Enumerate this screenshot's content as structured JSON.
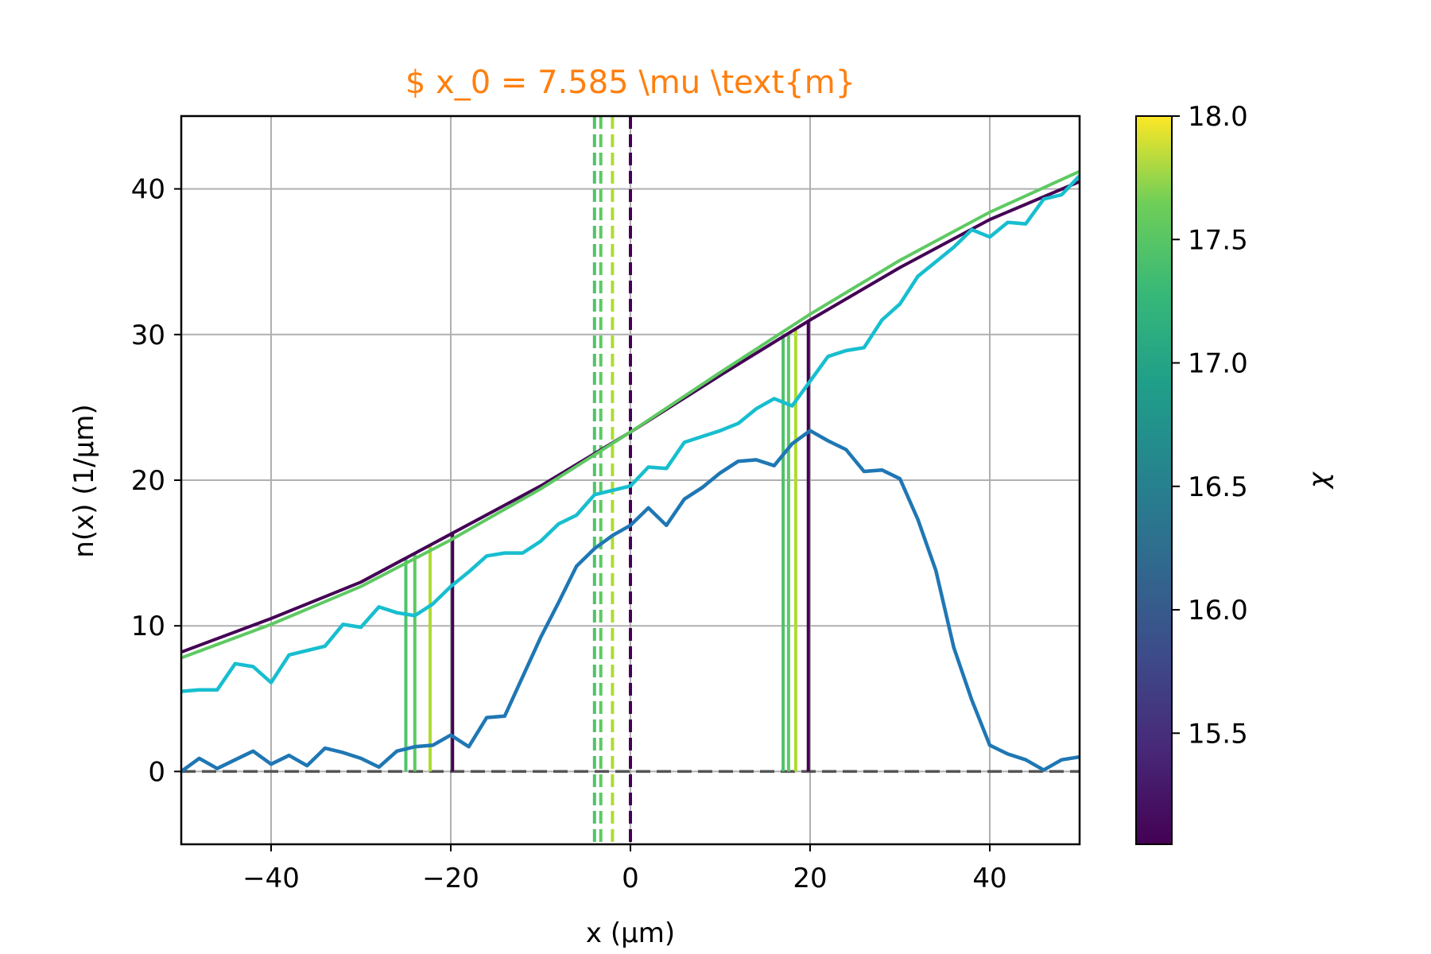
{
  "chart_data": {
    "type": "line",
    "title": "$ x_0 = 7.585 \\mu \\text{m}",
    "title_color": "#ff7f0e",
    "xlabel": "x   (μm)",
    "ylabel": "n(x)   (1/μm)",
    "xlim": [
      -50,
      50
    ],
    "ylim": [
      -5,
      45
    ],
    "x_ticks": [
      -40,
      -20,
      0,
      20,
      40
    ],
    "x_tick_labels": [
      "−40",
      "−20",
      "0",
      "20",
      "40"
    ],
    "y_ticks": [
      0,
      10,
      20,
      30,
      40
    ],
    "y_tick_labels": [
      "0",
      "10",
      "20",
      "30",
      "40"
    ],
    "grid": true,
    "colorbar": {
      "label": "χ",
      "min": 15.05,
      "max": 18.0,
      "ticks": [
        15.5,
        16.0,
        16.5,
        17.0,
        17.5,
        18.0
      ],
      "tick_labels": [
        "15.5",
        "16.0",
        "16.5",
        "17.0",
        "17.5",
        "18.0"
      ],
      "colormap": "viridis"
    },
    "baseline": {
      "y": 0,
      "color": "#555555",
      "style": "dashed"
    },
    "series": [
      {
        "color": "#1f77b4",
        "x": [
          -50,
          -48,
          -46,
          -44,
          -42,
          -40,
          -38,
          -36,
          -34,
          -32,
          -30,
          -28,
          -26,
          -24,
          -22,
          -20,
          -18,
          -16,
          -14,
          -12,
          -10,
          -8,
          -6,
          -4,
          -2,
          0,
          2,
          4,
          6,
          8,
          10,
          12,
          14,
          16,
          18,
          20,
          22,
          24,
          26,
          28,
          30,
          32,
          34,
          36,
          38,
          40,
          42,
          44,
          46,
          48,
          50
        ],
        "y": [
          0,
          0.9,
          0.2,
          0.8,
          1.4,
          0.5,
          1.1,
          0.4,
          1.6,
          1.3,
          0.9,
          0.3,
          1.4,
          1.7,
          1.8,
          2.5,
          1.7,
          3.7,
          3.8,
          6.5,
          9.2,
          11.6,
          14.1,
          15.3,
          16.2,
          16.9,
          18.1,
          16.9,
          18.7,
          19.5,
          20.5,
          21.3,
          21.4,
          21.0,
          22.5,
          23.4,
          22.7,
          22.1,
          20.6,
          20.7,
          20.1,
          17.3,
          13.8,
          8.5,
          4.9,
          1.8,
          1.2,
          0.8,
          0.1,
          0.8,
          1.0
        ],
        "style": "solid"
      },
      {
        "color": "#17becf",
        "x": [
          -50,
          -48,
          -46,
          -44,
          -42,
          -40,
          -38,
          -36,
          -34,
          -32,
          -30,
          -28,
          -26,
          -24,
          -22,
          -20,
          -18,
          -16,
          -14,
          -12,
          -10,
          -8,
          -6,
          -4,
          -2,
          0,
          2,
          4,
          6,
          8,
          10,
          12,
          14,
          16,
          18,
          20,
          22,
          24,
          26,
          28,
          30,
          32,
          34,
          36,
          38,
          40,
          42,
          44,
          46,
          48,
          50
        ],
        "y": [
          5.5,
          5.6,
          5.6,
          7.4,
          7.2,
          6.1,
          8.0,
          8.3,
          8.6,
          10.1,
          9.9,
          11.3,
          10.9,
          10.7,
          11.5,
          12.7,
          13.7,
          14.8,
          15.0,
          15.0,
          15.8,
          17.0,
          17.6,
          19.0,
          19.3,
          19.6,
          20.9,
          20.8,
          22.6,
          23.0,
          23.4,
          23.9,
          24.9,
          25.6,
          25.1,
          26.8,
          28.5,
          28.9,
          29.1,
          31.0,
          32.1,
          34.0,
          35.0,
          36.0,
          37.2,
          36.7,
          37.7,
          37.6,
          39.3,
          39.6,
          40.9
        ]
      },
      {
        "color": "#440154",
        "x": [
          -50,
          -40,
          -30,
          -20,
          -10,
          0,
          10,
          20,
          30,
          40,
          50
        ],
        "y": [
          8.2,
          10.5,
          13.0,
          16.3,
          19.6,
          23.3,
          27.2,
          31.0,
          34.6,
          37.9,
          40.5
        ]
      },
      {
        "color": "#5ec962",
        "x": [
          -50,
          -40,
          -30,
          -20,
          -10,
          0,
          10,
          20,
          30,
          40,
          50
        ],
        "y": [
          7.8,
          10.1,
          12.7,
          15.9,
          19.4,
          23.3,
          27.4,
          31.4,
          35.1,
          38.4,
          41.2
        ]
      }
    ],
    "vertical_lines": [
      {
        "x": -25.0,
        "color": "#4ec36b",
        "style": "solid",
        "to_curve": true
      },
      {
        "x": -24.0,
        "color": "#5ec962",
        "style": "solid",
        "to_curve": true
      },
      {
        "x": -22.3,
        "color": "#addc30",
        "style": "solid",
        "to_curve": true
      },
      {
        "x": -19.8,
        "color": "#440154",
        "style": "solid",
        "to_curve": true
      },
      {
        "x": 17.0,
        "color": "#4ec36b",
        "style": "solid",
        "to_curve": true
      },
      {
        "x": 17.6,
        "color": "#5ec962",
        "style": "solid",
        "to_curve": true
      },
      {
        "x": 18.4,
        "color": "#addc30",
        "style": "solid",
        "to_curve": true
      },
      {
        "x": 19.8,
        "color": "#440154",
        "style": "solid",
        "to_curve": true
      },
      {
        "x": -4.0,
        "color": "#4ec36b",
        "style": "dashed",
        "full": true
      },
      {
        "x": -3.3,
        "color": "#5ec962",
        "style": "dashed",
        "full": true
      },
      {
        "x": -2.0,
        "color": "#addc30",
        "style": "dashed",
        "full": true
      },
      {
        "x": 0.0,
        "color": "#440154",
        "style": "dashed",
        "full": true
      }
    ]
  }
}
